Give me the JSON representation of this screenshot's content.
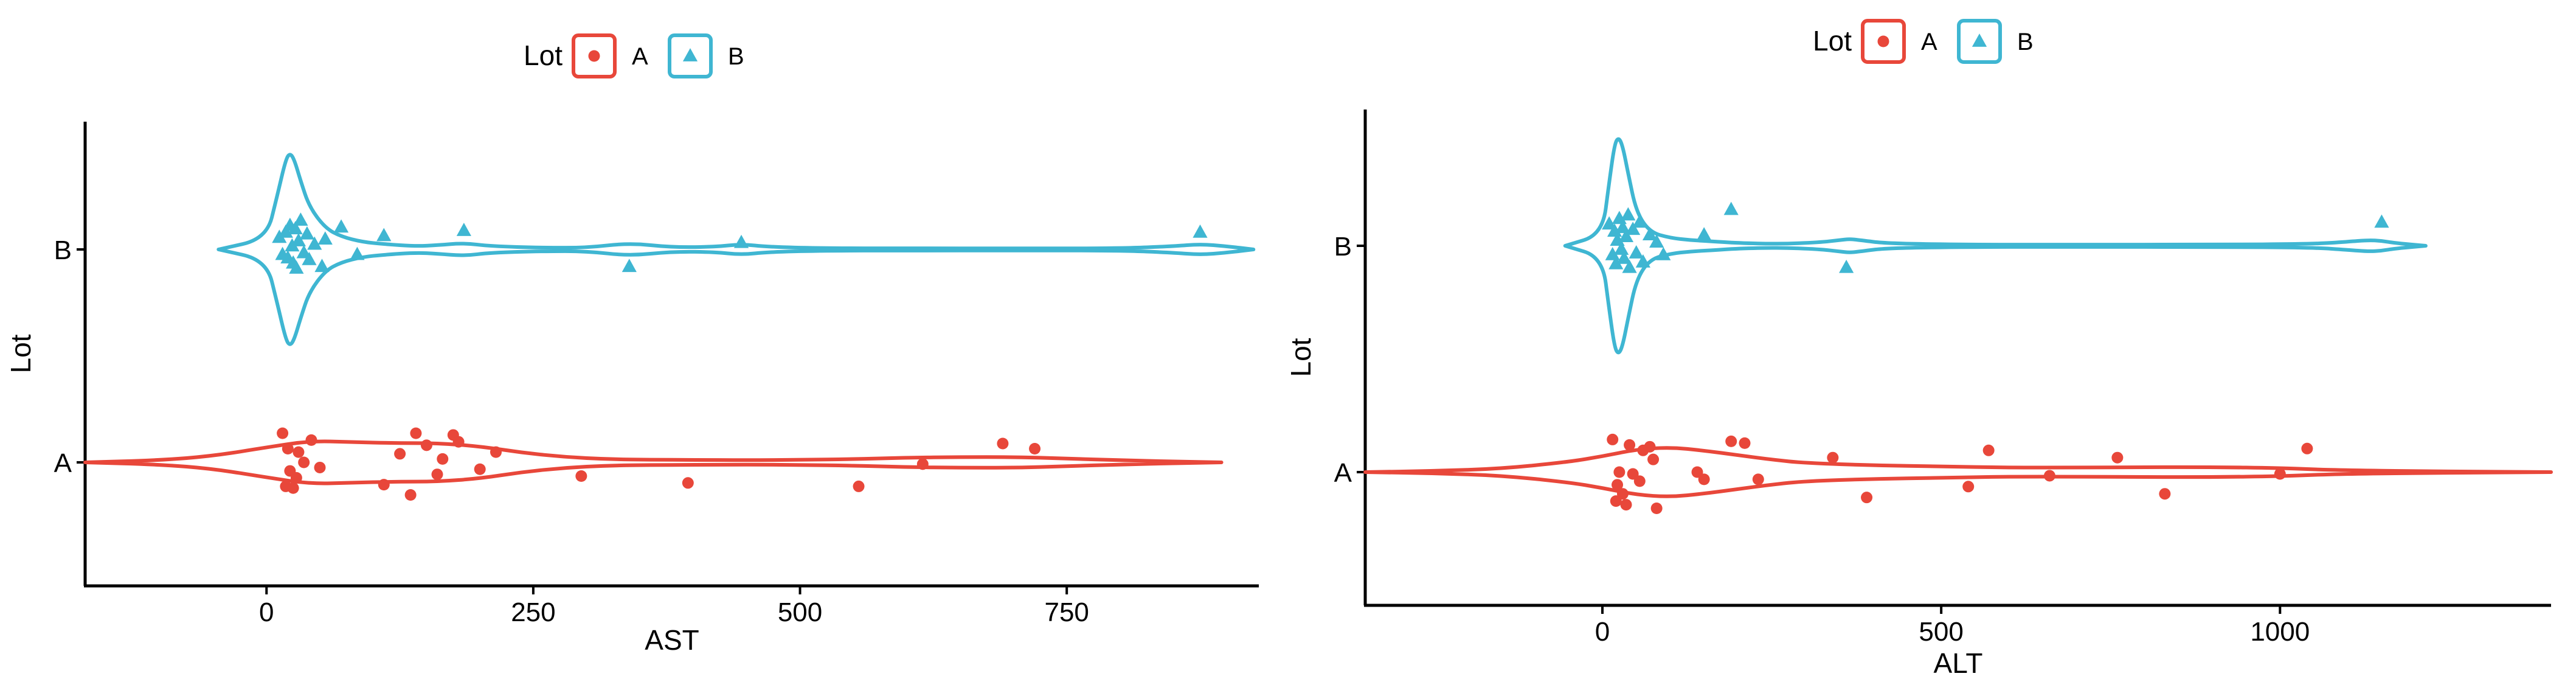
{
  "colors": {
    "A": "#e8473a",
    "B": "#3fb6d2",
    "axis": "#000000"
  },
  "legend": {
    "title": "Lot",
    "items": [
      {
        "key": "A",
        "label": "A",
        "shape": "circle"
      },
      {
        "key": "B",
        "label": "B",
        "shape": "triangle"
      }
    ]
  },
  "chart_data": [
    {
      "type": "violin",
      "xlabel": "AST",
      "ylabel": "Lot",
      "xlim": [
        -170,
        930
      ],
      "xticks": [
        0,
        250,
        500,
        750
      ],
      "categories": [
        "A",
        "B"
      ],
      "legend_position": "top",
      "grid": false,
      "series": [
        {
          "name": "B",
          "values": [
            12,
            15,
            18,
            20,
            22,
            24,
            25,
            27,
            28,
            30,
            32,
            35,
            38,
            40,
            45,
            52,
            55,
            70,
            85,
            110,
            185,
            340,
            445,
            875
          ],
          "jitter": [
            0.07,
            -0.03,
            0.1,
            -0.05,
            0.14,
            0.02,
            -0.08,
            0.12,
            -0.11,
            0.05,
            0.17,
            -0.02,
            0.09,
            -0.06,
            0.03,
            -0.1,
            0.06,
            0.13,
            -0.03,
            0.08,
            0.11,
            -0.1,
            0.04,
            0.1
          ],
          "violin_xs": [
            -45,
            0,
            10,
            18,
            22,
            26,
            32,
            40,
            55,
            70,
            90,
            110,
            140,
            160,
            185,
            210,
            260,
            300,
            340,
            380,
            420,
            445,
            470,
            520,
            600,
            700,
            800,
            850,
            875,
            900,
            925
          ],
          "violin_ws": [
            0.0,
            0.05,
            0.25,
            0.42,
            0.45,
            0.42,
            0.32,
            0.2,
            0.1,
            0.06,
            0.035,
            0.025,
            0.015,
            0.02,
            0.03,
            0.015,
            0.008,
            0.008,
            0.03,
            0.01,
            0.012,
            0.025,
            0.012,
            0.006,
            0.005,
            0.005,
            0.005,
            0.015,
            0.025,
            0.015,
            0.0
          ]
        },
        {
          "name": "A",
          "values": [
            15,
            18,
            20,
            22,
            25,
            28,
            30,
            35,
            42,
            50,
            110,
            125,
            135,
            140,
            150,
            160,
            165,
            175,
            180,
            200,
            215,
            295,
            395,
            555,
            615,
            690,
            720
          ],
          "jitter": [
            0.17,
            -0.14,
            0.08,
            -0.05,
            -0.15,
            -0.09,
            0.06,
            0.0,
            0.13,
            -0.03,
            -0.13,
            0.05,
            -0.19,
            0.17,
            0.1,
            -0.07,
            0.02,
            0.16,
            0.12,
            -0.04,
            0.06,
            -0.08,
            -0.12,
            -0.14,
            -0.01,
            0.11,
            0.08
          ],
          "violin_xs": [
            -170,
            -100,
            -50,
            0,
            40,
            80,
            120,
            160,
            200,
            240,
            280,
            320,
            360,
            400,
            450,
            500,
            550,
            600,
            650,
            700,
            750,
            800,
            850,
            895
          ],
          "violin_ws": [
            0.0,
            0.01,
            0.03,
            0.07,
            0.1,
            0.095,
            0.09,
            0.09,
            0.075,
            0.045,
            0.025,
            0.015,
            0.012,
            0.012,
            0.01,
            0.012,
            0.015,
            0.022,
            0.025,
            0.025,
            0.018,
            0.01,
            0.004,
            0.0
          ]
        }
      ]
    },
    {
      "type": "violin",
      "xlabel": "ALT",
      "ylabel": "Lot",
      "xlim": [
        -350,
        1400
      ],
      "xticks": [
        0,
        500,
        1000
      ],
      "categories": [
        "A",
        "B"
      ],
      "legend_position": "top",
      "grid": false,
      "series": [
        {
          "name": "B",
          "values": [
            10,
            15,
            18,
            20,
            22,
            25,
            28,
            30,
            32,
            35,
            38,
            40,
            45,
            50,
            55,
            60,
            70,
            80,
            90,
            150,
            190,
            360,
            1150
          ],
          "jitter": [
            0.12,
            -0.05,
            0.08,
            -0.1,
            0.03,
            0.15,
            -0.02,
            0.1,
            -0.07,
            0.05,
            0.17,
            -0.12,
            0.09,
            -0.04,
            0.13,
            -0.09,
            0.06,
            0.02,
            -0.05,
            0.06,
            0.2,
            -0.12,
            0.13
          ],
          "violin_xs": [
            -55,
            0,
            10,
            18,
            24,
            30,
            38,
            50,
            70,
            100,
            130,
            160,
            200,
            260,
            320,
            350,
            365,
            380,
            420,
            550,
            700,
            900,
            1050,
            1100,
            1130,
            1150,
            1170,
            1215
          ],
          "violin_ws": [
            0.0,
            0.05,
            0.28,
            0.45,
            0.48,
            0.44,
            0.32,
            0.15,
            0.06,
            0.035,
            0.025,
            0.02,
            0.012,
            0.008,
            0.015,
            0.025,
            0.03,
            0.025,
            0.01,
            0.005,
            0.005,
            0.005,
            0.008,
            0.018,
            0.025,
            0.022,
            0.012,
            0.0
          ]
        },
        {
          "name": "A",
          "values": [
            15,
            20,
            22,
            25,
            30,
            35,
            40,
            45,
            55,
            60,
            70,
            75,
            80,
            140,
            150,
            190,
            210,
            230,
            340,
            390,
            540,
            570,
            660,
            760,
            830,
            1000,
            1040
          ],
          "jitter": [
            0.18,
            -0.16,
            -0.07,
            0.0,
            -0.12,
            -0.18,
            0.15,
            -0.01,
            -0.05,
            0.12,
            0.14,
            0.07,
            -0.2,
            0.0,
            -0.04,
            0.17,
            0.16,
            -0.04,
            0.08,
            -0.14,
            -0.08,
            0.12,
            -0.02,
            0.08,
            -0.12,
            -0.01,
            0.13
          ],
          "violin_xs": [
            -350,
            -250,
            -150,
            -50,
            0,
            50,
            100,
            150,
            200,
            250,
            300,
            400,
            500,
            600,
            700,
            800,
            900,
            1000,
            1050,
            1100,
            1200,
            1300,
            1400
          ],
          "violin_ws": [
            0.0,
            0.005,
            0.015,
            0.045,
            0.07,
            0.1,
            0.11,
            0.095,
            0.075,
            0.055,
            0.04,
            0.03,
            0.025,
            0.02,
            0.02,
            0.022,
            0.022,
            0.018,
            0.012,
            0.008,
            0.004,
            0.002,
            0.0
          ]
        }
      ]
    }
  ]
}
